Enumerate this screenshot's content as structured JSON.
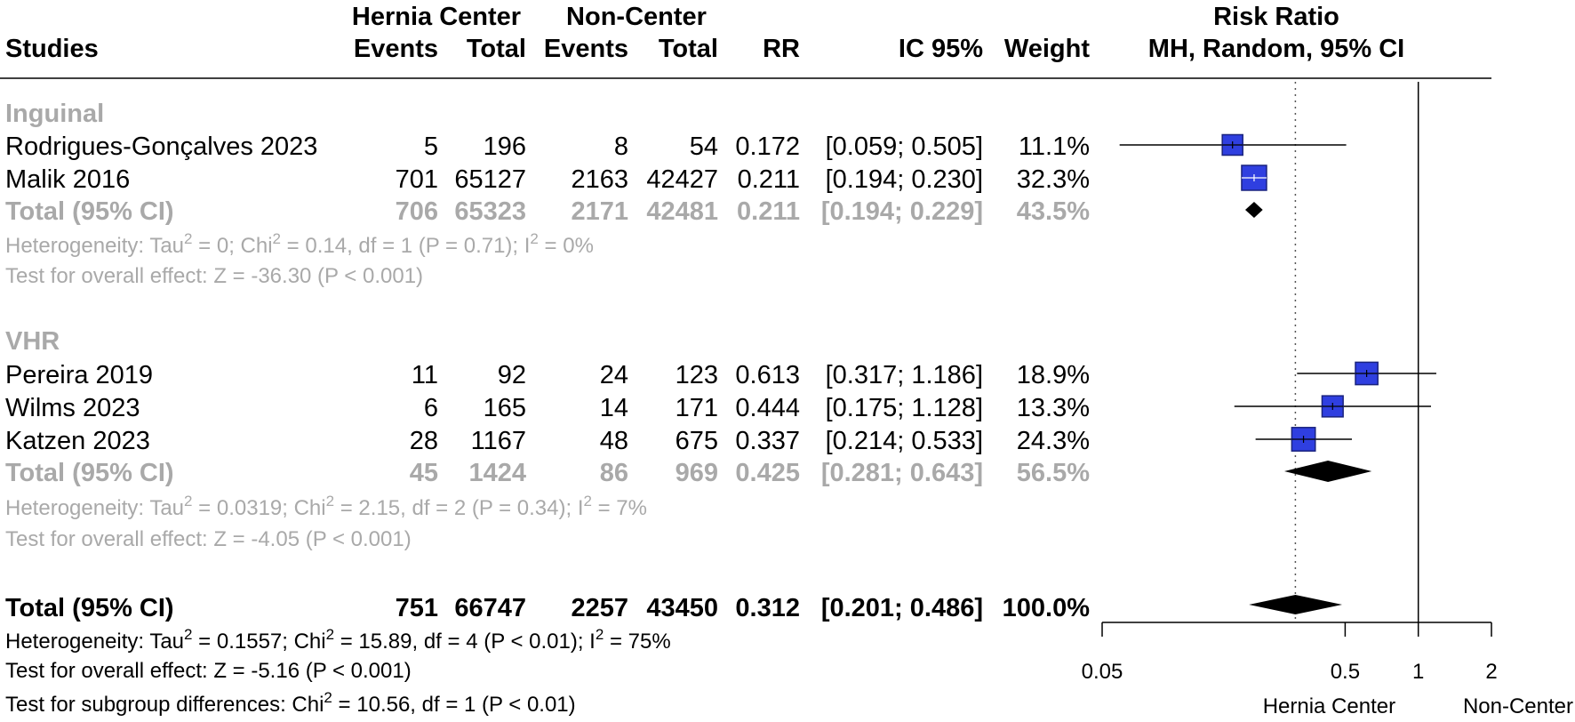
{
  "header": {
    "group1": "Hernia Center",
    "group2": "Non-Center",
    "studies": "Studies",
    "events1": "Events",
    "total1": "Total",
    "events2": "Events",
    "total2": "Total",
    "rr": "RR",
    "ci": "IC 95%",
    "weight": "Weight",
    "plot_title": "Risk Ratio",
    "plot_subtitle": "MH, Random, 95% CI"
  },
  "subgroups": [
    {
      "name": "Inguinal",
      "studies": [
        {
          "study": "Rodrigues-Gonçalves 2023",
          "e1": "5",
          "n1": "196",
          "e2": "8",
          "n2": "54",
          "rr": "0.172",
          "ci": "[0.059; 0.505]",
          "w": "11.1%"
        },
        {
          "study": "Malik 2016",
          "e1": "701",
          "n1": "65127",
          "e2": "2163",
          "n2": "42427",
          "rr": "0.211",
          "ci": "[0.194; 0.230]",
          "w": "32.3%"
        }
      ],
      "total": {
        "study": "Total (95% CI)",
        "e1": "706",
        "n1": "65323",
        "e2": "2171",
        "n2": "42481",
        "rr": "0.211",
        "ci": "[0.194; 0.229]",
        "w": "43.5%"
      },
      "het": {
        "a": "Heterogeneity: Tau",
        "b": " = 0; Chi",
        "c": " = 0.14, df = 1 (P = 0.71); I",
        "d": " = 0%"
      },
      "test": "Test for overall effect: Z = -36.30 (P < 0.001)"
    },
    {
      "name": "VHR",
      "studies": [
        {
          "study": "Pereira 2019",
          "e1": "11",
          "n1": "92",
          "e2": "24",
          "n2": "123",
          "rr": "0.613",
          "ci": "[0.317; 1.186]",
          "w": "18.9%"
        },
        {
          "study": "Wilms 2023",
          "e1": "6",
          "n1": "165",
          "e2": "14",
          "n2": "171",
          "rr": "0.444",
          "ci": "[0.175; 1.128]",
          "w": "13.3%"
        },
        {
          "study": "Katzen 2023",
          "e1": "28",
          "n1": "1167",
          "e2": "48",
          "n2": "675",
          "rr": "0.337",
          "ci": "[0.214; 0.533]",
          "w": "24.3%"
        }
      ],
      "total": {
        "study": "Total (95% CI)",
        "e1": "45",
        "n1": "1424",
        "e2": "86",
        "n2": "969",
        "rr": "0.425",
        "ci": "[0.281; 0.643]",
        "w": "56.5%"
      },
      "het": {
        "a": "Heterogeneity: Tau",
        "b": " = 0.0319; Chi",
        "c": " = 2.15, df = 2 (P = 0.34); I",
        "d": " = 7%"
      },
      "test": "Test for overall effect: Z = -4.05 (P < 0.001)"
    }
  ],
  "overall": {
    "total": {
      "study": "Total (95% CI)",
      "e1": "751",
      "n1": "66747",
      "e2": "2257",
      "n2": "43450",
      "rr": "0.312",
      "ci": "[0.201; 0.486]",
      "w": "100.0%"
    },
    "het": {
      "a": "Heterogeneity: Tau",
      "b": " = 0.1557; Chi",
      "c": " = 15.89, df = 4 (P < 0.01); I",
      "d": " = 75%"
    },
    "test": "Test for overall effect: Z = -5.16 (P < 0.001)",
    "subgroup_test": {
      "a": "Test for subgroup differences: Chi",
      "b": " = 10.56, df = 1 (P < 0.01)"
    }
  },
  "superscript": "2",
  "axis": {
    "ticks": [
      {
        "value": 0.05,
        "label": "0.05"
      },
      {
        "value": 0.5,
        "label": "0.5"
      },
      {
        "value": 1,
        "label": "1"
      },
      {
        "value": 2,
        "label": "2"
      }
    ],
    "left_label": "Hernia Center",
    "right_label": "Non-Center"
  },
  "chart_data": {
    "type": "forest",
    "title": "Risk Ratio",
    "subtitle": "MH, Random, 95% CI",
    "scale": "log",
    "xlim": [
      0.05,
      2
    ],
    "null_value": 1,
    "pooled_reference": 0.312,
    "colors": {
      "box": "#2f3fe0",
      "box_edge": "#1a237e",
      "diamond": "#000000",
      "grey_text": "#a9a9a9"
    },
    "studies": [
      {
        "name": "Rodrigues-Gonçalves 2023",
        "rr": 0.172,
        "lo": 0.059,
        "hi": 0.505,
        "weight": 11.1
      },
      {
        "name": "Malik 2016",
        "rr": 0.211,
        "lo": 0.194,
        "hi": 0.23,
        "weight": 32.3
      },
      {
        "name": "Pereira 2019",
        "rr": 0.613,
        "lo": 0.317,
        "hi": 1.186,
        "weight": 18.9
      },
      {
        "name": "Wilms 2023",
        "rr": 0.444,
        "lo": 0.175,
        "hi": 1.128,
        "weight": 13.3
      },
      {
        "name": "Katzen 2023",
        "rr": 0.337,
        "lo": 0.214,
        "hi": 0.533,
        "weight": 24.3
      }
    ],
    "pooled": [
      {
        "name": "Inguinal",
        "rr": 0.211,
        "lo": 0.194,
        "hi": 0.229
      },
      {
        "name": "VHR",
        "rr": 0.425,
        "lo": 0.281,
        "hi": 0.643
      },
      {
        "name": "Total",
        "rr": 0.312,
        "lo": 0.201,
        "hi": 0.486
      }
    ]
  }
}
